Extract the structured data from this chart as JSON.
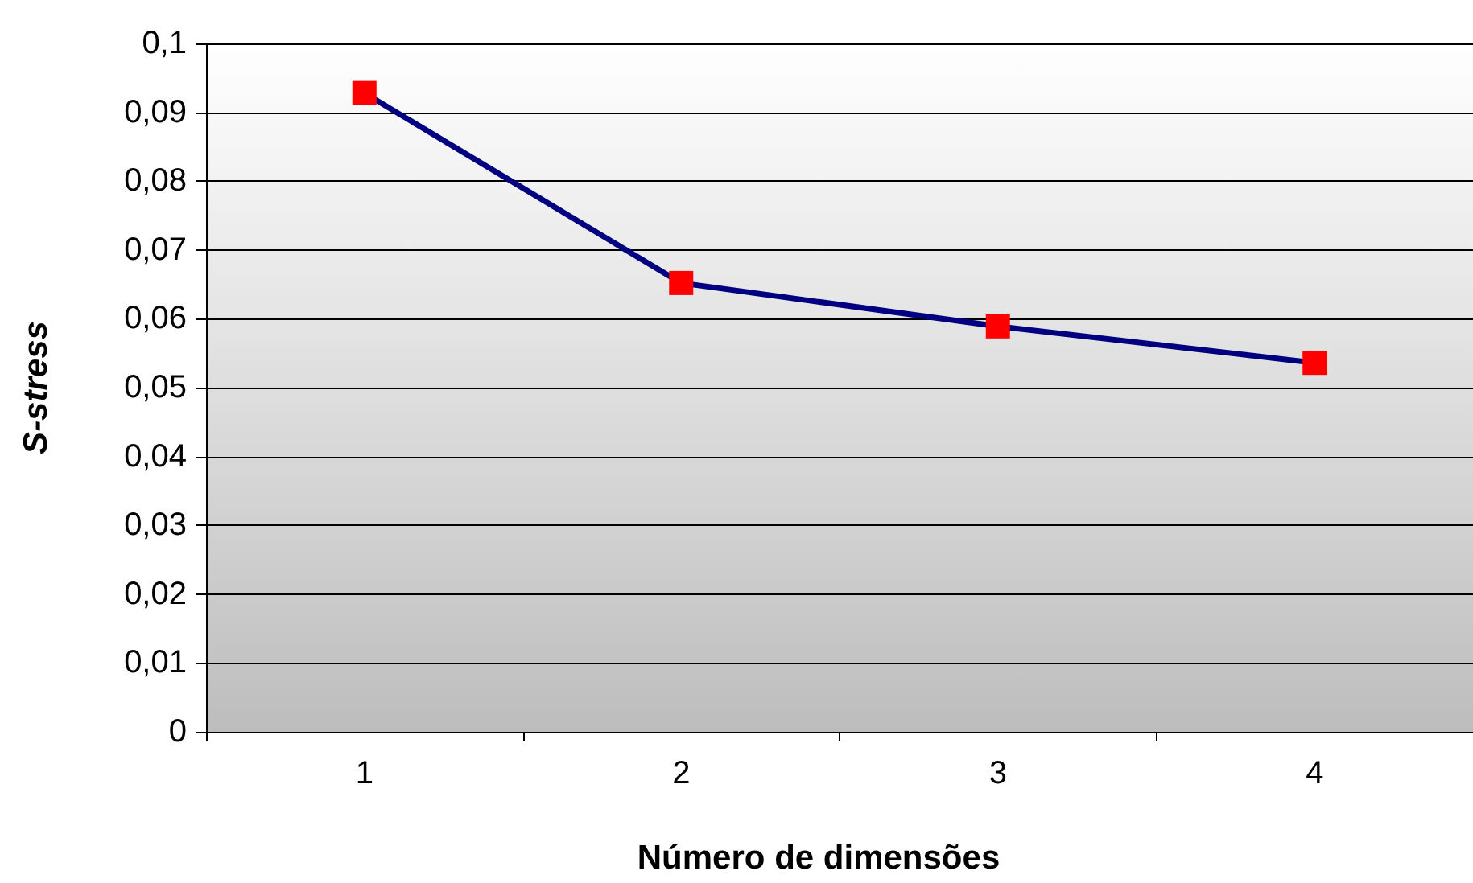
{
  "chart_data": {
    "type": "line",
    "xlabel": "Número de dimensões",
    "ylabel": "S-stress",
    "categories": [
      "1",
      "2",
      "3",
      "4"
    ],
    "series": [
      {
        "color": "#000080",
        "values": [
          0.0928,
          0.0652,
          0.0589,
          0.0536
        ]
      }
    ],
    "marker": "square",
    "line_style": "solid",
    "ylim": [
      0,
      0.1
    ],
    "yticks": [
      0,
      {
        "value": 0.01,
        "label": "0,01"
      },
      {
        "value": 0.02,
        "label": "0,02"
      },
      {
        "value": 0.03,
        "label": "0,03"
      },
      {
        "value": 0.04,
        "label": "0,04"
      },
      {
        "value": 0.05,
        "label": "0,05"
      },
      {
        "value": 0.06,
        "label": "0,06"
      },
      {
        "value": 0.07,
        "label": "0,07"
      },
      {
        "value": 0.08,
        "label": "0,08"
      },
      {
        "value": 0.09,
        "label": "0,09"
      },
      {
        "value": 0.1,
        "label": "0,1"
      }
    ],
    "grid": "y"
  }
}
